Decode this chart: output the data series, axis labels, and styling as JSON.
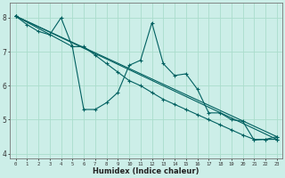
{
  "title": "",
  "xlabel": "Humidex (Indice chaleur)",
  "ylabel": "",
  "bg_color": "#cceee8",
  "plot_bg_color": "#cceee8",
  "grid_color": "#aaddcc",
  "line_color": "#006060",
  "xlim": [
    -0.5,
    23.5
  ],
  "ylim": [
    3.85,
    8.45
  ],
  "yticks": [
    4,
    5,
    6,
    7,
    8
  ],
  "xticks": [
    0,
    1,
    2,
    3,
    4,
    5,
    6,
    7,
    8,
    9,
    10,
    11,
    12,
    13,
    14,
    15,
    16,
    17,
    18,
    19,
    20,
    21,
    22,
    23
  ],
  "lines": [
    {
      "x": [
        0,
        1,
        2,
        3,
        4,
        5,
        6,
        7,
        8,
        9,
        10,
        11,
        12,
        13,
        14,
        15,
        16,
        17,
        18,
        19,
        20,
        21,
        22,
        23
      ],
      "y": [
        8.05,
        7.8,
        7.6,
        7.5,
        8.0,
        7.15,
        5.3,
        5.3,
        5.5,
        5.8,
        6.6,
        6.75,
        7.85,
        6.65,
        6.3,
        6.35,
        5.9,
        5.2,
        5.2,
        5.0,
        4.95,
        4.4,
        4.42,
        4.5
      ]
    },
    {
      "x": [
        0,
        23
      ],
      "y": [
        8.05,
        4.5
      ]
    },
    {
      "x": [
        0,
        23
      ],
      "y": [
        8.05,
        4.42
      ]
    },
    {
      "x": [
        0,
        23
      ],
      "y": [
        8.05,
        4.5
      ]
    }
  ],
  "straight_lines": [
    {
      "x": [
        0,
        23
      ],
      "y": [
        8.05,
        4.5
      ]
    },
    {
      "x": [
        0,
        23
      ],
      "y": [
        8.05,
        4.42
      ]
    },
    {
      "x": [
        0,
        5,
        6,
        7,
        8,
        9,
        10,
        11,
        12,
        13,
        14,
        15,
        16,
        17,
        18,
        19,
        20,
        21,
        22,
        23
      ],
      "y": [
        8.05,
        7.15,
        7.15,
        6.9,
        6.65,
        6.4,
        6.15,
        6.0,
        5.8,
        5.6,
        5.45,
        5.3,
        5.15,
        5.0,
        4.85,
        4.7,
        4.55,
        4.42,
        4.42,
        4.42
      ]
    }
  ],
  "squiggly": {
    "x": [
      0,
      1,
      2,
      3,
      4,
      5,
      6,
      7,
      8,
      9,
      10,
      11,
      12,
      13,
      14,
      15,
      16,
      17,
      18,
      19,
      20,
      21,
      22,
      23
    ],
    "y": [
      8.05,
      7.8,
      7.6,
      7.5,
      8.0,
      7.15,
      5.3,
      5.3,
      5.5,
      5.8,
      6.6,
      6.75,
      7.85,
      6.65,
      6.3,
      6.35,
      5.9,
      5.2,
      5.2,
      5.0,
      4.95,
      4.4,
      4.42,
      4.5
    ]
  }
}
